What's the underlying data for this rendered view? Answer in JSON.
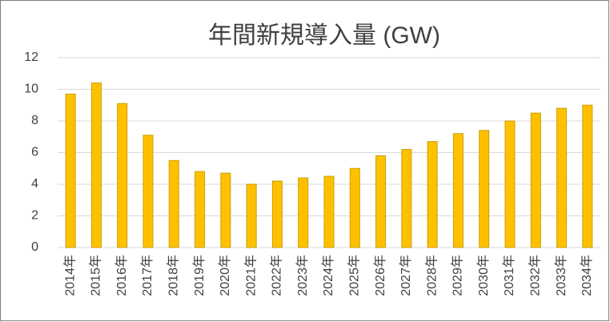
{
  "chart_data": {
    "type": "bar",
    "title": "年間新規導入量 (GW)",
    "categories": [
      "2014年",
      "2015年",
      "2016年",
      "2017年",
      "2018年",
      "2019年",
      "2020年",
      "2021年",
      "2022年",
      "2023年",
      "2024年",
      "2025年",
      "2026年",
      "2027年",
      "2028年",
      "2029年",
      "2030年",
      "2031年",
      "2032年",
      "2033年",
      "2034年"
    ],
    "values": [
      9.7,
      10.4,
      9.1,
      7.1,
      5.5,
      4.8,
      4.7,
      4.0,
      4.2,
      4.4,
      4.5,
      5.0,
      5.8,
      6.2,
      6.7,
      7.2,
      7.4,
      8.0,
      8.5,
      8.8,
      9.0
    ],
    "color": "#ffc000",
    "ylim": [
      0,
      12
    ],
    "yticks": [
      0,
      2,
      4,
      6,
      8,
      10,
      12
    ],
    "grid": true
  }
}
